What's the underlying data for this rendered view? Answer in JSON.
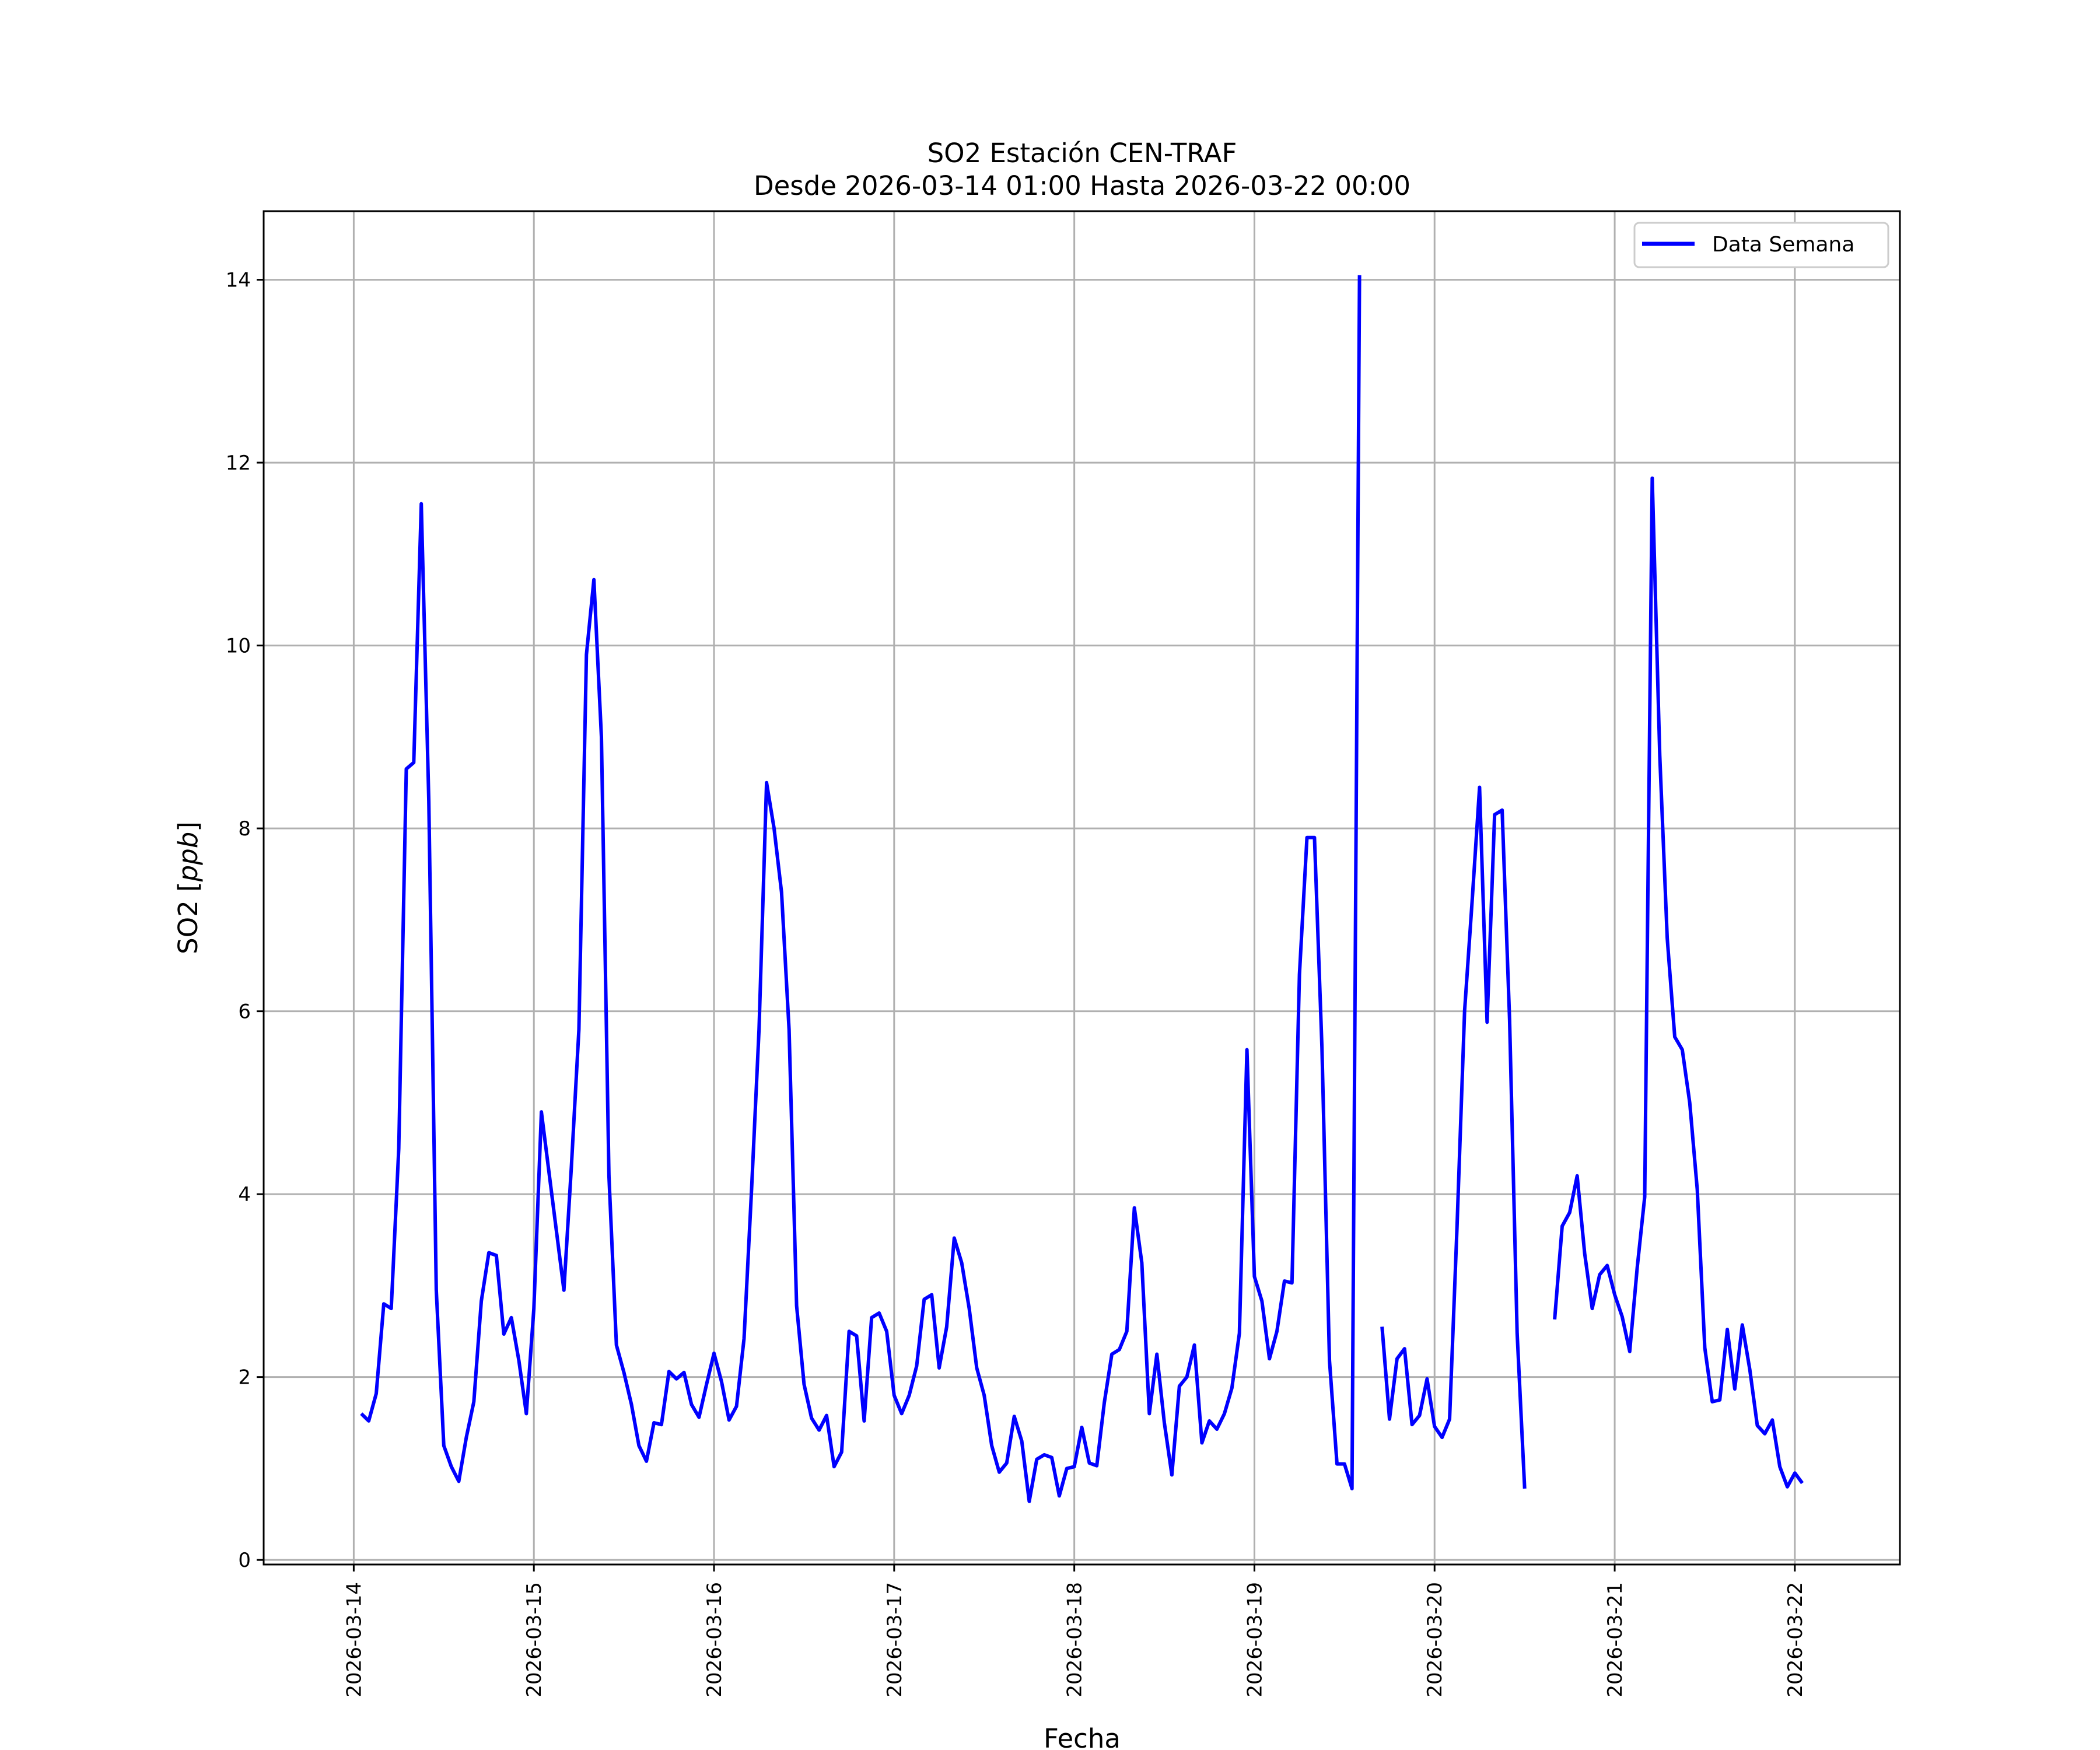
{
  "chart_data": {
    "type": "line",
    "title": "SO2 Estación CEN-TRAF",
    "subtitle": "Desde 2026-03-14 01:00 Hasta 2026-03-22 00:00",
    "xlabel": "Fecha",
    "ylabel": "SO2 [ppb]",
    "ylabel_prefix": "SO2 [",
    "ylabel_unit": "ppb",
    "ylabel_suffix": "]",
    "x_tick_labels": [
      "2026-03-14",
      "2026-03-15",
      "2026-03-16",
      "2026-03-17",
      "2026-03-18",
      "2026-03-19",
      "2026-03-20",
      "2026-03-21",
      "2026-03-22"
    ],
    "y_ticks": [
      0,
      2,
      4,
      6,
      8,
      10,
      12,
      14
    ],
    "ylim": [
      -0.05,
      14.75
    ],
    "xlim_hours": [
      -12,
      206
    ],
    "grid": true,
    "legend_position": "top-right",
    "series": [
      {
        "name": "Data Semana",
        "color": "#0000ff",
        "x_start": "2026-03-14 01:00",
        "x_step_hours": 1,
        "values": [
          1.6,
          1.52,
          1.82,
          2.8,
          2.75,
          4.5,
          8.65,
          8.72,
          11.55,
          8.3,
          2.95,
          1.25,
          1.02,
          0.86,
          1.34,
          1.73,
          2.83,
          3.36,
          3.33,
          2.47,
          2.65,
          2.18,
          1.6,
          2.75,
          4.9,
          4.25,
          3.6,
          2.95,
          4.3,
          5.8,
          9.9,
          10.72,
          9.0,
          4.2,
          2.35,
          2.05,
          1.7,
          1.25,
          1.08,
          1.5,
          1.48,
          2.06,
          1.98,
          2.05,
          1.7,
          1.56,
          1.92,
          2.26,
          1.95,
          1.53,
          1.68,
          2.42,
          4.05,
          5.8,
          8.5,
          8.0,
          7.3,
          5.8,
          2.78,
          1.92,
          1.55,
          1.42,
          1.58,
          1.02,
          1.18,
          2.5,
          2.45,
          1.52,
          2.65,
          2.7,
          2.5,
          1.8,
          1.6,
          1.8,
          2.12,
          2.85,
          2.9,
          2.1,
          2.55,
          3.52,
          3.25,
          2.75,
          2.1,
          1.8,
          1.25,
          0.96,
          1.06,
          1.57,
          1.3,
          0.64,
          1.1,
          1.15,
          1.12,
          0.7,
          1.0,
          1.02,
          1.45,
          1.06,
          1.03,
          1.72,
          2.25,
          2.3,
          2.5,
          3.85,
          3.25,
          1.6,
          2.25,
          1.5,
          0.93,
          1.9,
          2.0,
          2.35,
          1.28,
          1.52,
          1.43,
          1.6,
          1.88,
          2.48,
          5.58,
          3.1,
          2.83,
          2.2,
          2.5,
          3.05,
          3.03,
          6.4,
          7.9,
          7.9,
          5.6,
          2.18,
          1.05,
          1.05,
          0.78,
          14.05,
          null,
          null,
          2.55,
          1.54,
          2.2,
          2.31,
          1.48,
          1.58,
          1.98,
          1.46,
          1.34,
          1.54,
          3.65,
          6.0,
          7.2,
          8.45,
          5.88,
          8.15,
          8.2,
          5.9,
          2.48,
          0.78,
          null,
          null,
          null,
          2.63,
          3.65,
          3.8,
          4.2,
          3.35,
          2.75,
          3.12,
          3.22,
          2.9,
          2.66,
          2.28,
          3.2,
          3.97,
          11.83,
          8.8,
          6.8,
          5.72,
          5.58,
          5.0,
          4.05,
          2.32,
          1.73,
          1.75,
          2.52,
          1.87,
          2.57,
          2.08,
          1.47,
          1.38,
          1.53,
          1.02,
          0.8,
          0.95,
          0.84
        ]
      }
    ]
  }
}
